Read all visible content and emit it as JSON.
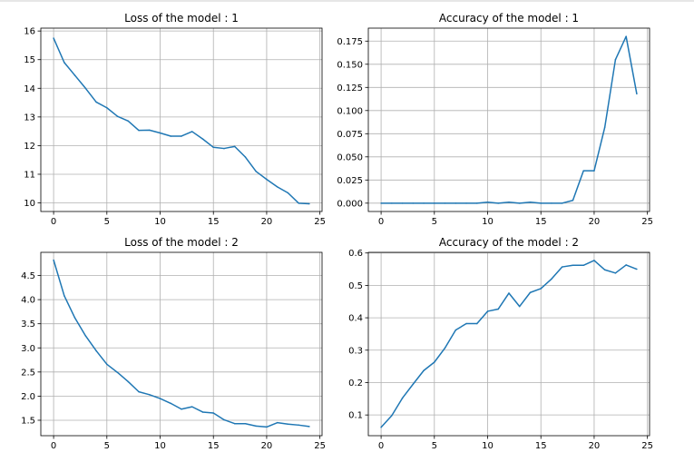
{
  "colors": {
    "series": "#1f77b4",
    "grid": "#b0b0b0"
  },
  "chart_data": [
    {
      "type": "line",
      "title": "Loss of the model : 1",
      "xlim": [
        -1.2,
        25.2
      ],
      "ylim": [
        9.7,
        16.1
      ],
      "xticks": [
        0,
        5,
        10,
        15,
        20,
        25
      ],
      "yticks": [
        10,
        11,
        12,
        13,
        14,
        15,
        16
      ],
      "ytick_labels": [
        "10",
        "11",
        "12",
        "13",
        "14",
        "15",
        "16"
      ],
      "grid": true,
      "x": [
        0,
        1,
        2,
        3,
        4,
        5,
        6,
        7,
        8,
        9,
        10,
        11,
        12,
        13,
        14,
        15,
        16,
        17,
        18,
        19,
        20,
        21,
        22,
        23,
        24
      ],
      "values": [
        15.75,
        14.9,
        14.45,
        14.0,
        13.52,
        13.32,
        13.02,
        12.86,
        12.53,
        12.54,
        12.44,
        12.33,
        12.33,
        12.49,
        12.23,
        11.94,
        11.9,
        11.97,
        11.6,
        11.1,
        10.82,
        10.56,
        10.35,
        9.99,
        9.97
      ]
    },
    {
      "type": "line",
      "title": "Accuracy of the model : 1",
      "xlim": [
        -1.2,
        25.2
      ],
      "ylim": [
        -0.009,
        0.189
      ],
      "xticks": [
        0,
        5,
        10,
        15,
        20,
        25
      ],
      "yticks": [
        0,
        0.025,
        0.05,
        0.075,
        0.1,
        0.125,
        0.15,
        0.175
      ],
      "ytick_labels": [
        "0.000",
        "0.025",
        "0.050",
        "0.075",
        "0.100",
        "0.125",
        "0.150",
        "0.175"
      ],
      "grid": true,
      "x": [
        0,
        1,
        2,
        3,
        4,
        5,
        6,
        7,
        8,
        9,
        10,
        11,
        12,
        13,
        14,
        15,
        16,
        17,
        18,
        19,
        20,
        21,
        22,
        23,
        24
      ],
      "values": [
        0,
        0,
        0,
        0,
        0,
        0,
        0,
        0,
        0,
        0,
        0.001,
        0,
        0.001,
        0,
        0.001,
        0,
        0,
        0,
        0.003,
        0.035,
        0.035,
        0.082,
        0.155,
        0.18,
        0.118
      ]
    },
    {
      "type": "line",
      "title": "Loss of the model : 2",
      "xlim": [
        -1.2,
        25.2
      ],
      "ylim": [
        1.18,
        4.98
      ],
      "xticks": [
        0,
        5,
        10,
        15,
        20,
        25
      ],
      "yticks": [
        1.5,
        2.0,
        2.5,
        3.0,
        3.5,
        4.0,
        4.5
      ],
      "ytick_labels": [
        "1.5",
        "2.0",
        "2.5",
        "3.0",
        "3.5",
        "4.0",
        "4.5"
      ],
      "grid": true,
      "x": [
        0,
        1,
        2,
        3,
        4,
        5,
        6,
        7,
        8,
        9,
        10,
        11,
        12,
        13,
        14,
        15,
        16,
        17,
        18,
        19,
        20,
        21,
        22,
        23,
        24
      ],
      "values": [
        4.82,
        4.08,
        3.62,
        3.25,
        2.94,
        2.66,
        2.49,
        2.3,
        2.09,
        2.03,
        1.95,
        1.85,
        1.73,
        1.78,
        1.67,
        1.65,
        1.51,
        1.43,
        1.43,
        1.38,
        1.36,
        1.45,
        1.42,
        1.4,
        1.37
      ]
    },
    {
      "type": "line",
      "title": "Accuracy of the model : 2",
      "xlim": [
        -1.2,
        25.2
      ],
      "ylim": [
        0.036,
        0.602
      ],
      "xticks": [
        0,
        5,
        10,
        15,
        20,
        25
      ],
      "yticks": [
        0.1,
        0.2,
        0.3,
        0.4,
        0.5,
        0.6
      ],
      "ytick_labels": [
        "0.1",
        "0.2",
        "0.3",
        "0.4",
        "0.5",
        "0.6"
      ],
      "grid": true,
      "x": [
        0,
        1,
        2,
        3,
        4,
        5,
        6,
        7,
        8,
        9,
        10,
        11,
        12,
        13,
        14,
        15,
        16,
        17,
        18,
        19,
        20,
        21,
        22,
        23,
        24
      ],
      "values": [
        0.062,
        0.098,
        0.152,
        0.195,
        0.237,
        0.263,
        0.307,
        0.362,
        0.382,
        0.382,
        0.42,
        0.427,
        0.476,
        0.435,
        0.478,
        0.49,
        0.52,
        0.557,
        0.562,
        0.562,
        0.577,
        0.548,
        0.538,
        0.563,
        0.55
      ]
    }
  ]
}
